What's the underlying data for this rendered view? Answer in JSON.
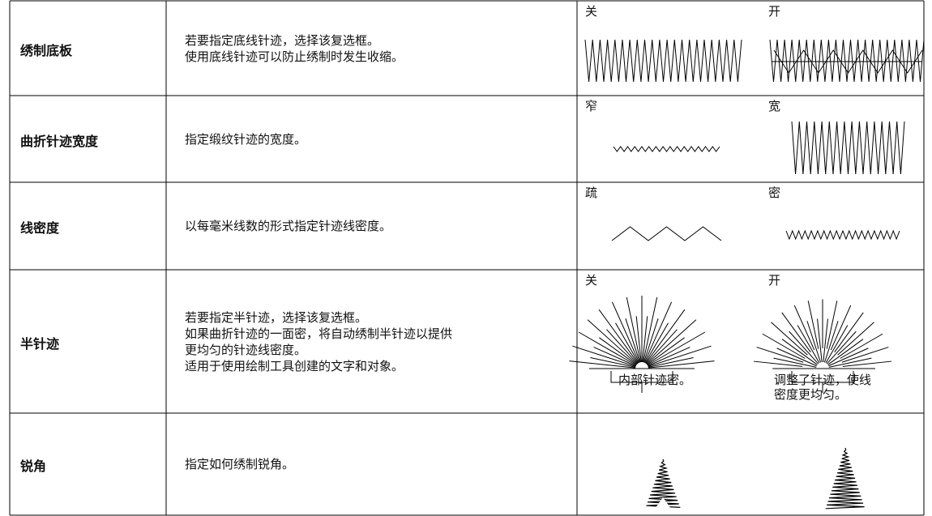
{
  "rows": [
    {
      "label": "绣制底板",
      "description": [
        "若要指定底线针迹，选择该复选框。",
        "使用底线针迹可以防止绣制时发生收缩。"
      ],
      "images": [
        {
          "label": "关"
        },
        {
          "label": "开"
        }
      ]
    },
    {
      "label": "曲折针迹宽度",
      "description": [
        "指定缎纹针迹的宽度。"
      ],
      "images": [
        {
          "label": "窄"
        },
        {
          "label": "宽"
        }
      ]
    },
    {
      "label": "线密度",
      "description": [
        "以每毫米线数的形式指定针迹线密度。"
      ],
      "images": [
        {
          "label": "疏"
        },
        {
          "label": "密"
        }
      ]
    },
    {
      "label": "半针迹",
      "description": [
        "若要指定半针迹，选择该复选框。",
        "如果曲折针迹的一面密，将自动绣制半针迹以提供",
        "更均匀的针迹线密度。",
        "适用于使用绘制工具创建的文字和对象。"
      ],
      "images": [
        {
          "label": "关",
          "caption": [
            "内部针迹密。"
          ]
        },
        {
          "label": "开",
          "caption": [
            "调整了针迹，使线",
            "密度更均匀。"
          ]
        }
      ]
    },
    {
      "label": "锐角",
      "description": [
        "指定如何绣制锐角。"
      ]
    }
  ]
}
